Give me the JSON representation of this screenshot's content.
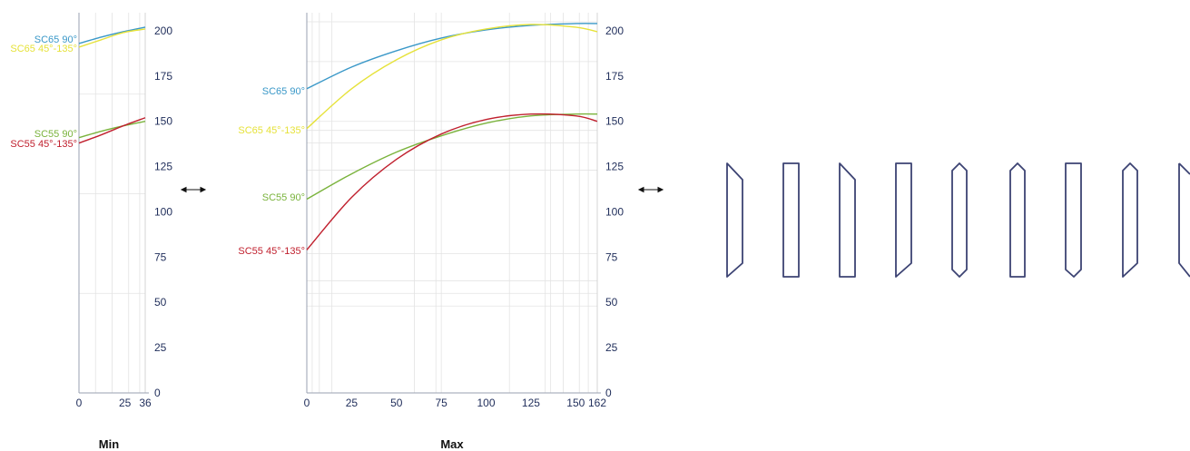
{
  "colors": {
    "SC65 90°": "#3a98c8",
    "SC65 45°-135°": "#e6e23a",
    "SC55 90°": "#7ab33c",
    "SC55 45°-135°": "#c0202e",
    "axis": "#1f2d5a"
  },
  "arrow_icon": "double-arrow-icon",
  "profile_icons": [
    "profile-left-bevel",
    "profile-flat",
    "profile-left-bevel",
    "profile-right-bevel",
    "profile-both-bevel",
    "profile-both-bevel",
    "profile-flat-bottom-point",
    "profile-both-bevel",
    "profile-right-bevel-partial"
  ],
  "chart_data": [
    {
      "type": "line",
      "caption": "Min",
      "xticks": [
        0,
        25,
        36
      ],
      "yticks": [
        0,
        25,
        50,
        75,
        100,
        125,
        150,
        175,
        200
      ],
      "xlim": [
        0,
        36
      ],
      "ylim": [
        0,
        210
      ],
      "grid": true,
      "series": [
        {
          "name": "SC65 90°",
          "x": [
            0,
            12,
            24,
            36
          ],
          "y": [
            193,
            196.5,
            199.5,
            202
          ]
        },
        {
          "name": "SC65 45°-135°",
          "x": [
            0,
            12,
            24,
            36
          ],
          "y": [
            191,
            195,
            199,
            201
          ]
        },
        {
          "name": "SC55 90°",
          "x": [
            0,
            12,
            24,
            36
          ],
          "y": [
            141,
            144.5,
            147.5,
            150
          ]
        },
        {
          "name": "SC55 45°-135°",
          "x": [
            0,
            12,
            24,
            36
          ],
          "y": [
            138,
            142.5,
            147.5,
            152
          ]
        }
      ]
    },
    {
      "type": "line",
      "caption": "Max",
      "xticks": [
        0,
        25,
        50,
        75,
        100,
        125,
        150,
        162
      ],
      "yticks": [
        0,
        25,
        50,
        75,
        100,
        125,
        150,
        175,
        200
      ],
      "xlim": [
        0,
        162
      ],
      "ylim": [
        0,
        210
      ],
      "grid": true,
      "series": [
        {
          "name": "SC65 90°",
          "x": [
            0,
            25,
            50,
            75,
            100,
            125,
            150,
            162
          ],
          "y": [
            168,
            180,
            189,
            196,
            200.5,
            203,
            204,
            204
          ]
        },
        {
          "name": "SC65 45°-135°",
          "x": [
            0,
            25,
            50,
            75,
            100,
            125,
            150,
            162
          ],
          "y": [
            146,
            168,
            184,
            195,
            201,
            203.5,
            202,
            199.5
          ]
        },
        {
          "name": "SC55 90°",
          "x": [
            0,
            25,
            50,
            75,
            100,
            125,
            150,
            162
          ],
          "y": [
            107,
            121,
            133,
            142,
            149,
            153,
            154,
            154
          ]
        },
        {
          "name": "SC55 45°-135°",
          "x": [
            0,
            25,
            50,
            75,
            100,
            125,
            150,
            162
          ],
          "y": [
            79,
            108,
            129,
            143,
            151,
            154,
            153,
            150
          ]
        }
      ]
    }
  ]
}
